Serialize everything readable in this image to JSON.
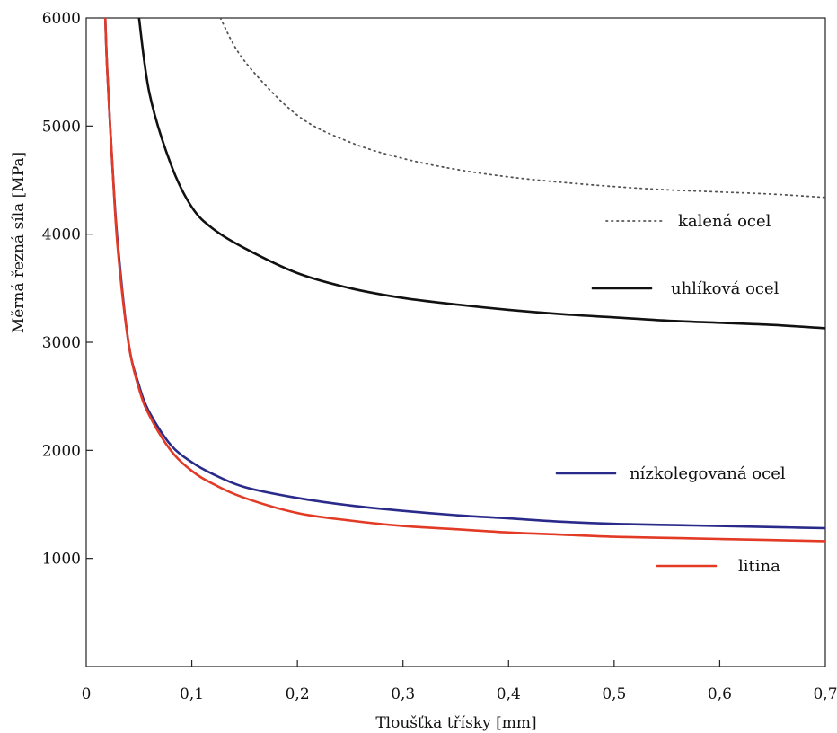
{
  "chart_data": {
    "type": "line",
    "xlabel": "Tloušťka třísky [mm]",
    "ylabel": "Měrná řezná síla [MPa]",
    "xlim": [
      0,
      0.7
    ],
    "ylim": [
      0,
      6000
    ],
    "x_ticks": [
      "0",
      "0,1",
      "0,2",
      "0,3",
      "0,4",
      "0,5",
      "0,6",
      "0,7"
    ],
    "y_ticks": [
      "1000",
      "2000",
      "3000",
      "4000",
      "5000",
      "6000"
    ],
    "grid": false,
    "legend_position": "right",
    "series": [
      {
        "name": "kalená ocel",
        "color": "#555555",
        "style": "dotted",
        "x": [
          0.127,
          0.15,
          0.2,
          0.25,
          0.3,
          0.35,
          0.4,
          0.45,
          0.5,
          0.55,
          0.6,
          0.65,
          0.7
        ],
        "y": [
          6000,
          5600,
          5100,
          4850,
          4700,
          4600,
          4530,
          4480,
          4440,
          4410,
          4390,
          4370,
          4340
        ]
      },
      {
        "name": "uhlíková ocel",
        "color": "#111111",
        "style": "solid",
        "x": [
          0.05,
          0.06,
          0.08,
          0.1,
          0.12,
          0.15,
          0.2,
          0.25,
          0.3,
          0.35,
          0.4,
          0.45,
          0.5,
          0.55,
          0.6,
          0.65,
          0.7
        ],
        "y": [
          6000,
          5300,
          4650,
          4250,
          4050,
          3870,
          3640,
          3500,
          3410,
          3350,
          3300,
          3260,
          3230,
          3200,
          3180,
          3160,
          3130
        ]
      },
      {
        "name": "nízkolegovaná ocel",
        "color": "#2a2a8a",
        "style": "solid",
        "x": [
          0.018,
          0.02,
          0.025,
          0.03,
          0.04,
          0.05,
          0.06,
          0.08,
          0.1,
          0.12,
          0.15,
          0.2,
          0.25,
          0.3,
          0.35,
          0.4,
          0.45,
          0.5,
          0.55,
          0.6,
          0.65,
          0.7
        ],
        "y": [
          6000,
          5500,
          4600,
          3900,
          3000,
          2600,
          2350,
          2050,
          1890,
          1780,
          1660,
          1560,
          1490,
          1440,
          1400,
          1370,
          1340,
          1320,
          1310,
          1300,
          1290,
          1280
        ]
      },
      {
        "name": "litina",
        "color": "#e23a25",
        "style": "solid",
        "x": [
          0.018,
          0.02,
          0.025,
          0.03,
          0.04,
          0.05,
          0.06,
          0.08,
          0.1,
          0.12,
          0.15,
          0.2,
          0.25,
          0.3,
          0.35,
          0.4,
          0.45,
          0.5,
          0.55,
          0.6,
          0.65,
          0.7
        ],
        "y": [
          6000,
          5500,
          4600,
          3850,
          3000,
          2570,
          2320,
          2000,
          1810,
          1690,
          1560,
          1420,
          1350,
          1300,
          1270,
          1240,
          1220,
          1200,
          1190,
          1180,
          1170,
          1160
        ]
      }
    ]
  }
}
